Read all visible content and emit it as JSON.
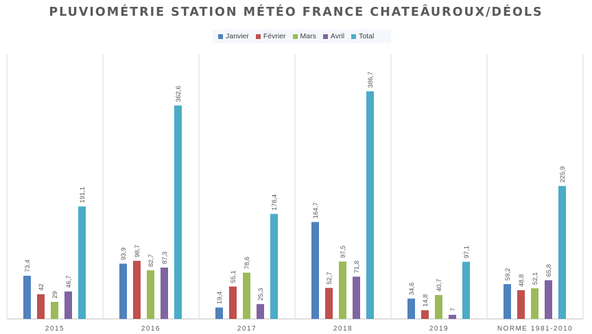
{
  "chart_data": {
    "type": "bar",
    "title": "PLUVIOMÉTRIE STATION MÉTÉO FRANCE CHATEÂUROUX/DÉOLS",
    "categories": [
      "2015",
      "2016",
      "2017",
      "2018",
      "2019",
      "NORME 1981-2010"
    ],
    "series": [
      {
        "name": "Janvier",
        "color": "#4f81bd",
        "values": [
          73.4,
          93.9,
          19.4,
          164.7,
          34.6,
          59.2
        ],
        "labels": [
          "73,4",
          "93,9",
          "19,4",
          "164,7",
          "34,6",
          "59,2"
        ]
      },
      {
        "name": "Février",
        "color": "#c0504d",
        "values": [
          42,
          98.7,
          55.1,
          52.7,
          14.8,
          48.8
        ],
        "labels": [
          "42",
          "98,7",
          "55,1",
          "52,7",
          "14,8",
          "48,8"
        ]
      },
      {
        "name": "Mars",
        "color": "#9bbb59",
        "values": [
          29,
          82.7,
          78.6,
          97.5,
          40.7,
          52.1
        ],
        "labels": [
          "29",
          "82,7",
          "78,6",
          "97,5",
          "40,7",
          "52,1"
        ]
      },
      {
        "name": "Avril",
        "color": "#8064a2",
        "values": [
          46.7,
          87.3,
          25.3,
          71.8,
          7,
          65.8
        ],
        "labels": [
          "46,7",
          "87,3",
          "25,3",
          "71,8",
          "7",
          "65,8"
        ]
      },
      {
        "name": "Total",
        "color": "#4bacc6",
        "values": [
          191.1,
          362.6,
          178.4,
          386.7,
          97.1,
          225.9
        ],
        "labels": [
          "191,1",
          "362,6",
          "178,4",
          "386,7",
          "97,1",
          "225,9"
        ]
      }
    ],
    "ylim": [
      0,
      450
    ],
    "grid": "vertical category separators",
    "legend_position": "top"
  }
}
